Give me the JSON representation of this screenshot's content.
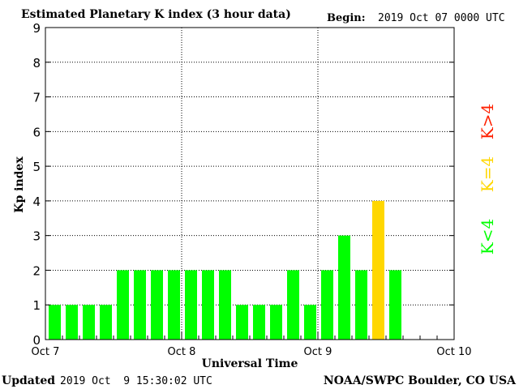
{
  "header": {
    "title": "Estimated Planetary K index (3 hour data)",
    "begin_label": "Begin:",
    "begin_value": "2019 Oct 07 0000 UTC"
  },
  "footer": {
    "updated_label": "Updated",
    "updated_value": "2019 Oct  9 15:30:02 UTC",
    "source": "NOAA/SWPC Boulder, CO USA"
  },
  "legend": {
    "high": "K>4",
    "equal": "K=4",
    "low": "K<4"
  },
  "colors": {
    "low": "#00ff00",
    "equal": "#ffd700",
    "high": "#ff2000",
    "axis": "#000000"
  },
  "chart_data": {
    "type": "bar",
    "title": "Estimated Planetary K index (3 hour data)",
    "xlabel": "Universal Time",
    "ylabel": "Kp index",
    "ylim": [
      0,
      9
    ],
    "yticks": [
      "0",
      "1",
      "2",
      "3",
      "4",
      "5",
      "6",
      "7",
      "8",
      "9"
    ],
    "x_days": 3,
    "bars_per_day": 8,
    "x_tick_labels": [
      "Oct 7",
      "Oct 8",
      "Oct 9",
      "Oct 10"
    ],
    "grid": true,
    "bar_color_rule": "green if K<4, yellow if K=4, red if K>4",
    "categories": [
      "Oct 7 00-03",
      "Oct 7 03-06",
      "Oct 7 06-09",
      "Oct 7 09-12",
      "Oct 7 12-15",
      "Oct 7 15-18",
      "Oct 7 18-21",
      "Oct 7 21-24",
      "Oct 8 00-03",
      "Oct 8 03-06",
      "Oct 8 06-09",
      "Oct 8 09-12",
      "Oct 8 12-15",
      "Oct 8 15-18",
      "Oct 8 18-21",
      "Oct 8 21-24",
      "Oct 9 00-03",
      "Oct 9 03-06",
      "Oct 9 06-09",
      "Oct 9 09-12",
      "Oct 9 12-15"
    ],
    "values": [
      1,
      1,
      1,
      1,
      2,
      2,
      2,
      2,
      2,
      2,
      2,
      1,
      1,
      1,
      2,
      1,
      2,
      3,
      2,
      4,
      2
    ]
  }
}
